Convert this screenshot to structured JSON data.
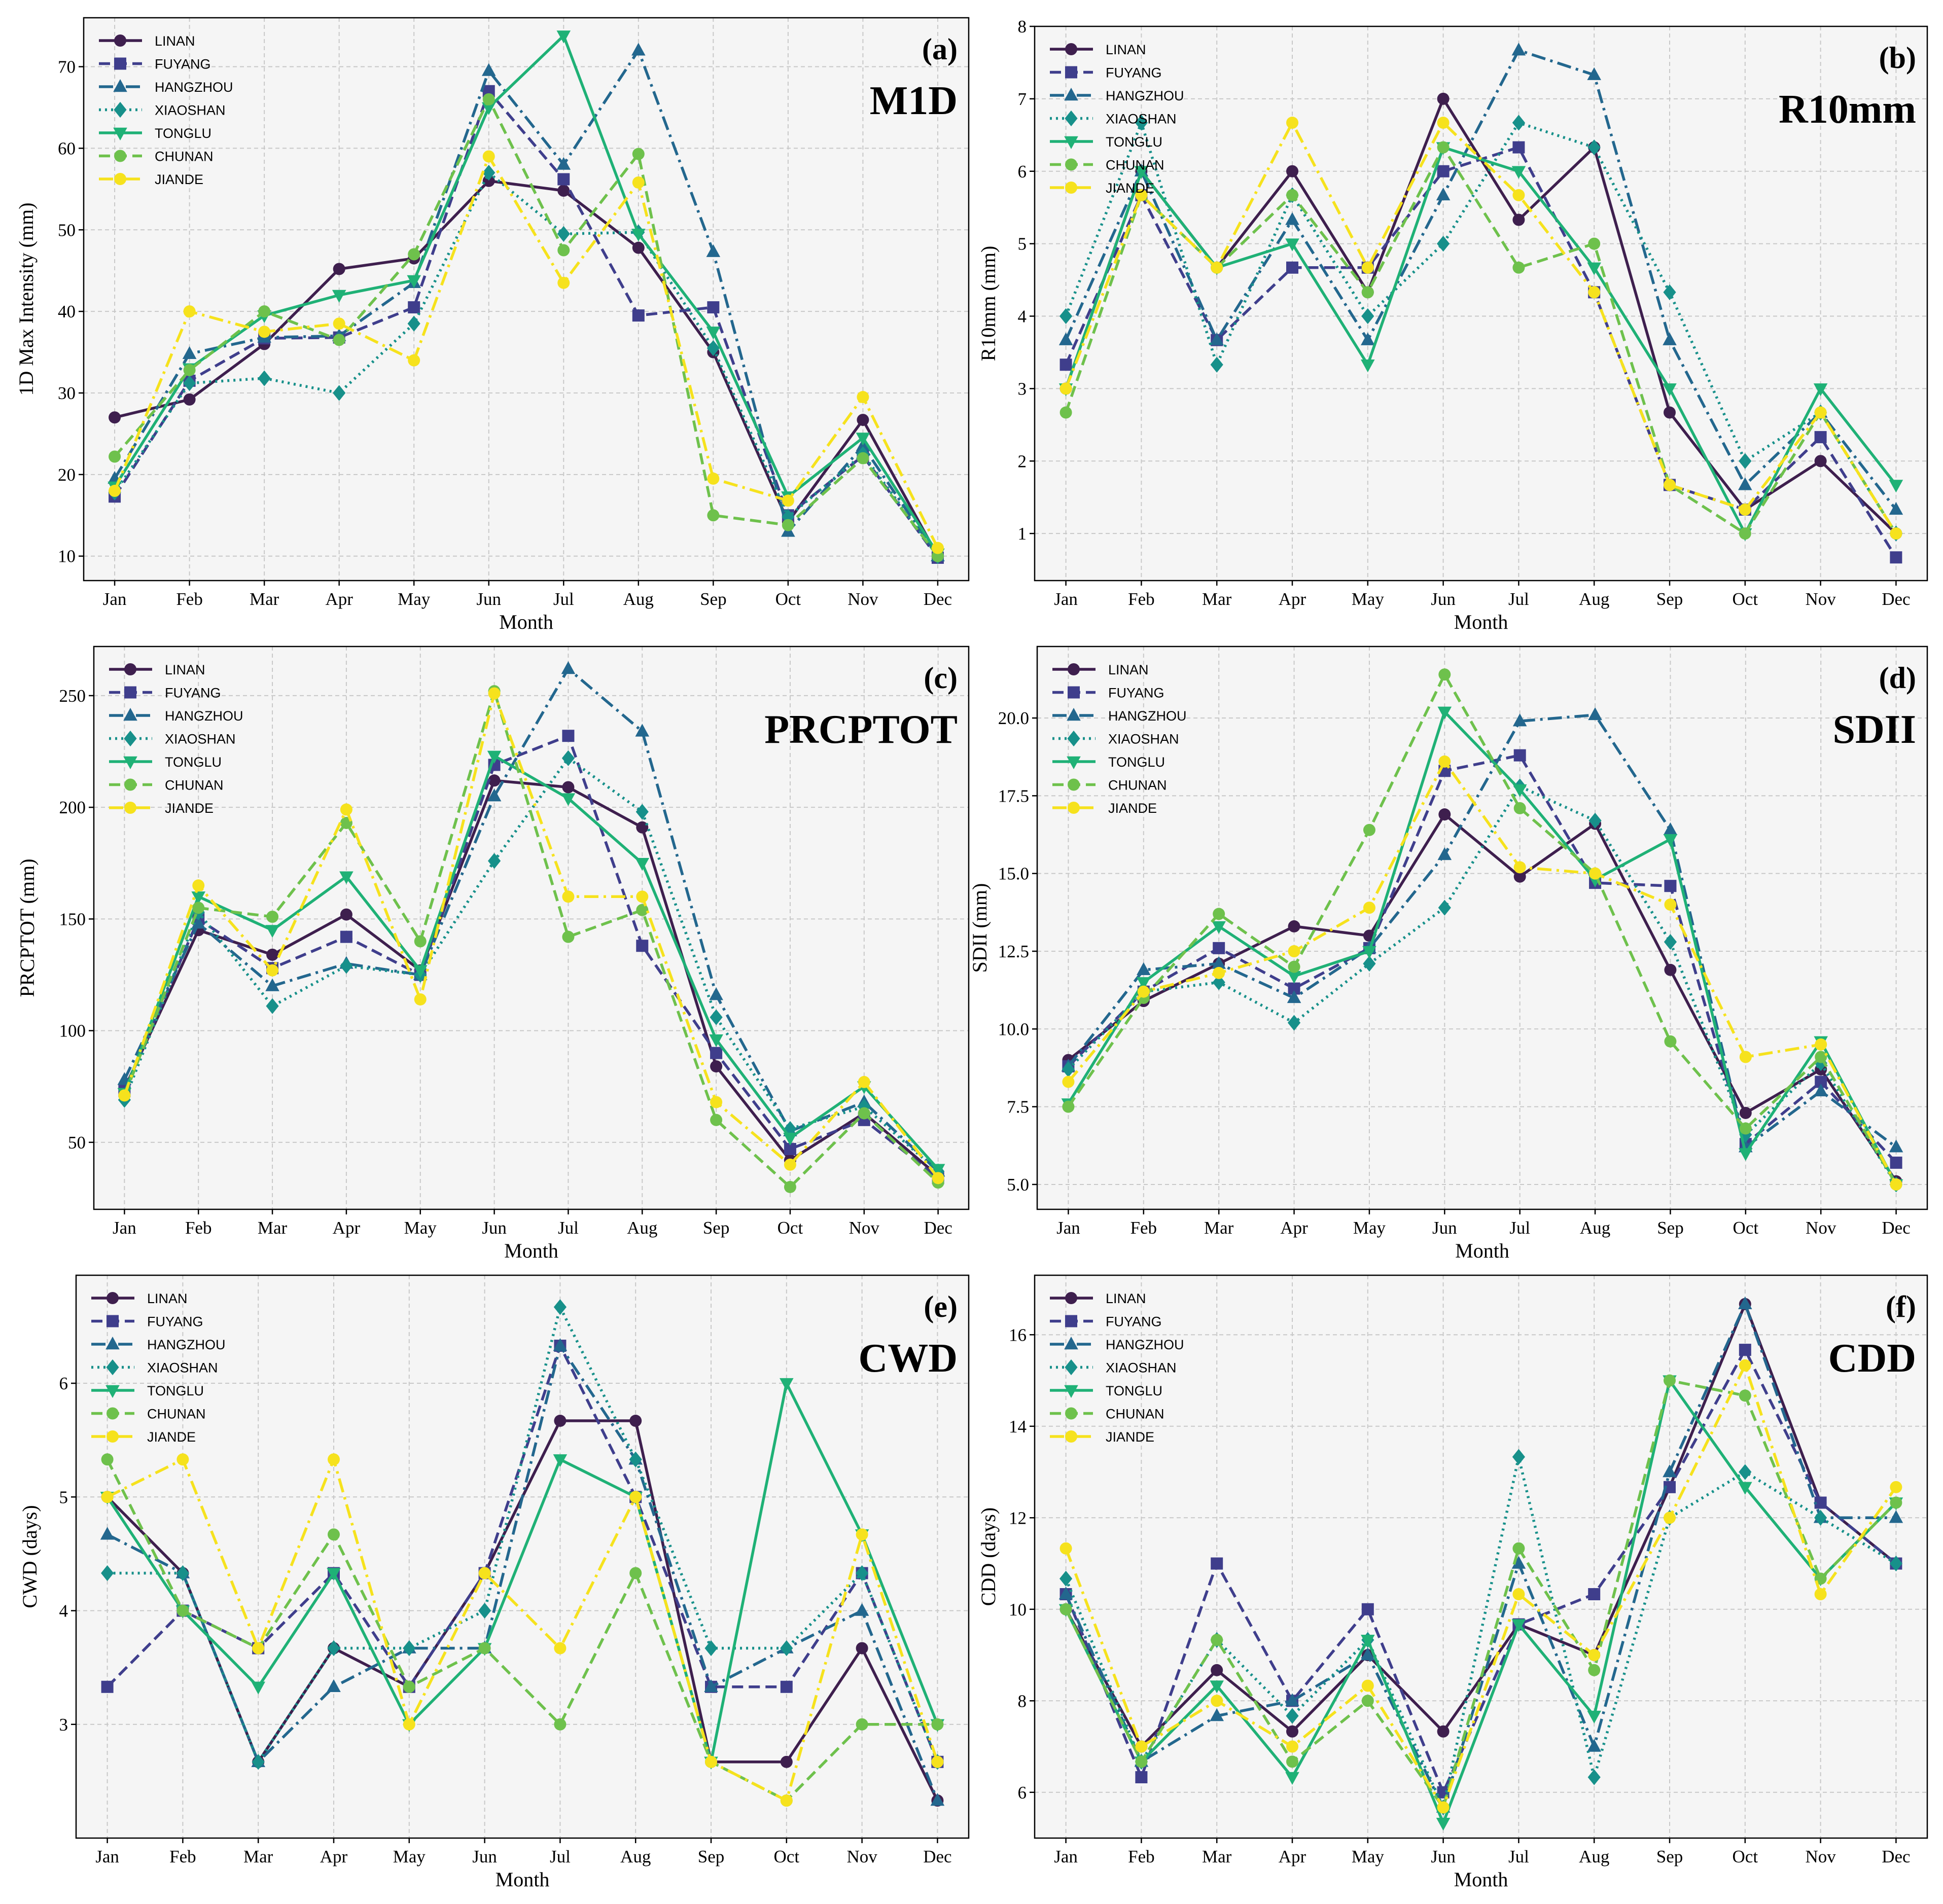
{
  "stations": [
    {
      "name": "LINAN",
      "color": "#3e1f4e",
      "dash": "",
      "marker": "circle"
    },
    {
      "name": "FUYANG",
      "color": "#3f3e8c",
      "dash": "22,11",
      "marker": "square"
    },
    {
      "name": "HANGZHOU",
      "color": "#23678e",
      "dash": "28,10,5,10",
      "marker": "triangle-up"
    },
    {
      "name": "XIAOSHAN",
      "color": "#17908a",
      "dash": "4,8",
      "marker": "diamond"
    },
    {
      "name": "TONGLU",
      "color": "#1fb176",
      "dash": "",
      "marker": "triangle-down"
    },
    {
      "name": "CHUNAN",
      "color": "#6ec14c",
      "dash": "22,11",
      "marker": "circle"
    },
    {
      "name": "JIANDE",
      "color": "#f6e21d",
      "dash": "28,10,5,10",
      "marker": "circle"
    }
  ],
  "chart_data": [
    {
      "id": "a",
      "type": "line",
      "letter": "(a)",
      "index_name": "M1D",
      "xlabel": "Month",
      "ylabel": "1D Max Intensity (mm)",
      "categories": [
        "Jan",
        "Feb",
        "Mar",
        "Apr",
        "May",
        "Jun",
        "Jul",
        "Aug",
        "Sep",
        "Oct",
        "Nov",
        "Dec"
      ],
      "ylim": [
        7,
        76
      ],
      "yticks": [
        10,
        20,
        30,
        40,
        50,
        60,
        70
      ],
      "ytick_labels": [
        "10",
        "20",
        "30",
        "40",
        "50",
        "60",
        "70"
      ],
      "series": [
        {
          "name": "LINAN",
          "values": [
            27,
            29.2,
            36,
            45.2,
            46.5,
            56,
            54.8,
            47.8,
            35,
            14.2,
            26.7,
            10
          ]
        },
        {
          "name": "FUYANG",
          "values": [
            17.3,
            31.5,
            36.7,
            36.8,
            40.5,
            67,
            56.2,
            39.5,
            40.5,
            15,
            22.3,
            9.8
          ]
        },
        {
          "name": "HANGZHOU",
          "values": [
            19.5,
            34.8,
            36.8,
            37,
            43.5,
            69.5,
            58,
            72,
            47.3,
            13,
            23.5,
            10
          ]
        },
        {
          "name": "XIAOSHAN",
          "values": [
            17.8,
            31.2,
            31.8,
            30,
            38.5,
            57,
            49.5,
            49.7,
            35.5,
            14.8,
            22.5,
            10
          ]
        },
        {
          "name": "TONGLU",
          "values": [
            18.5,
            33,
            39.5,
            42,
            43.8,
            65,
            73.8,
            49.5,
            37.5,
            17.3,
            24.5,
            10.3
          ]
        },
        {
          "name": "CHUNAN",
          "values": [
            22.2,
            32.8,
            40,
            36.5,
            47,
            66,
            47.5,
            59.3,
            15,
            13.8,
            22,
            10
          ]
        },
        {
          "name": "JIANDE",
          "values": [
            18,
            40,
            37.5,
            38.5,
            34,
            59,
            43.5,
            55.8,
            19.5,
            16.8,
            29.5,
            11
          ]
        }
      ]
    },
    {
      "id": "b",
      "type": "line",
      "letter": "(b)",
      "index_name": "R10mm",
      "xlabel": "Month",
      "ylabel": "R10mm (mm)",
      "categories": [
        "Jan",
        "Feb",
        "Mar",
        "Apr",
        "May",
        "Jun",
        "Jul",
        "Aug",
        "Sep",
        "Oct",
        "Nov",
        "Dec"
      ],
      "ylim": [
        0.35,
        8
      ],
      "yticks": [
        1,
        2,
        3,
        4,
        5,
        6,
        7,
        8
      ],
      "ytick_labels": [
        "1",
        "2",
        "3",
        "4",
        "5",
        "6",
        "7",
        "8"
      ],
      "series": [
        {
          "name": "LINAN",
          "values": [
            3,
            6,
            4.67,
            6,
            4.33,
            7,
            5.33,
            6.33,
            2.67,
            1.33,
            2,
            1
          ]
        },
        {
          "name": "FUYANG",
          "values": [
            3.33,
            5.67,
            3.67,
            4.67,
            4.67,
            6,
            6.33,
            4.33,
            1.67,
            1.33,
            2.33,
            0.67
          ]
        },
        {
          "name": "HANGZHOU",
          "values": [
            3.67,
            6,
            3.67,
            5.33,
            3.67,
            5.67,
            7.67,
            7.33,
            3.67,
            1.67,
            2.67,
            1.33
          ]
        },
        {
          "name": "XIAOSHAN",
          "values": [
            4,
            6.67,
            3.33,
            5.67,
            4,
            5,
            6.67,
            6.33,
            4.33,
            2,
            2.67,
            1
          ]
        },
        {
          "name": "TONGLU",
          "values": [
            3,
            6,
            4.67,
            5,
            3.33,
            6.33,
            6,
            4.67,
            3,
            1,
            3,
            1.67
          ]
        },
        {
          "name": "CHUNAN",
          "values": [
            2.67,
            5.67,
            4.67,
            5.67,
            4.33,
            6.33,
            4.67,
            5,
            1.67,
            1,
            2.67,
            1
          ]
        },
        {
          "name": "JIANDE",
          "values": [
            3,
            5.67,
            4.67,
            6.67,
            4.67,
            6.67,
            5.67,
            4.33,
            1.67,
            1.33,
            2.67,
            1
          ]
        }
      ]
    },
    {
      "id": "c",
      "type": "line",
      "letter": "(c)",
      "index_name": "PRCPTOT",
      "xlabel": "Month",
      "ylabel": "PRCPTOT (mm)",
      "categories": [
        "Jan",
        "Feb",
        "Mar",
        "Apr",
        "May",
        "Jun",
        "Jul",
        "Aug",
        "Sep",
        "Oct",
        "Nov",
        "Dec"
      ],
      "ylim": [
        20,
        272
      ],
      "yticks": [
        50,
        100,
        150,
        200,
        250
      ],
      "ytick_labels": [
        "50",
        "100",
        "150",
        "200",
        "250"
      ],
      "series": [
        {
          "name": "LINAN",
          "values": [
            74,
            145,
            134,
            152,
            127,
            212,
            209,
            191,
            84,
            42,
            63,
            35
          ]
        },
        {
          "name": "FUYANG",
          "values": [
            73,
            150,
            128,
            142,
            125,
            219,
            232,
            138,
            90,
            47,
            60,
            34
          ]
        },
        {
          "name": "HANGZHOU",
          "values": [
            78,
            148,
            120,
            130,
            125,
            205,
            262,
            234,
            116,
            55,
            68,
            37
          ]
        },
        {
          "name": "XIAOSHAN",
          "values": [
            69,
            153,
            111,
            129,
            125,
            176,
            222,
            198,
            106,
            56,
            66,
            37
          ]
        },
        {
          "name": "TONGLU",
          "values": [
            72,
            160,
            145,
            169,
            127,
            223,
            204,
            175,
            96,
            52,
            75,
            38
          ]
        },
        {
          "name": "CHUNAN",
          "values": [
            71,
            155,
            151,
            193,
            140,
            252,
            142,
            154,
            60,
            30,
            63,
            32
          ]
        },
        {
          "name": "JIANDE",
          "values": [
            71,
            165,
            127,
            199,
            114,
            251,
            160,
            160,
            68,
            40,
            77,
            34
          ]
        }
      ]
    },
    {
      "id": "d",
      "type": "line",
      "letter": "(d)",
      "index_name": "SDII",
      "xlabel": "Month",
      "ylabel": "SDII (mm)",
      "categories": [
        "Jan",
        "Feb",
        "Mar",
        "Apr",
        "May",
        "Jun",
        "Jul",
        "Aug",
        "Sep",
        "Oct",
        "Nov",
        "Dec"
      ],
      "ylim": [
        4.2,
        22.3
      ],
      "yticks": [
        5,
        7.5,
        10,
        12.5,
        15,
        17.5,
        20
      ],
      "ytick_labels": [
        "5.0",
        "7.5",
        "10.0",
        "12.5",
        "15.0",
        "17.5",
        "20.0"
      ],
      "series": [
        {
          "name": "LINAN",
          "values": [
            9,
            10.9,
            12.1,
            13.3,
            13,
            16.9,
            14.9,
            16.6,
            11.9,
            7.3,
            8.7,
            5.1
          ]
        },
        {
          "name": "FUYANG",
          "values": [
            8.8,
            11.2,
            12.6,
            11.3,
            12.6,
            18.3,
            18.8,
            14.7,
            14.6,
            6.3,
            8.3,
            5.7
          ]
        },
        {
          "name": "HANGZHOU",
          "values": [
            8.8,
            11.9,
            12.1,
            11,
            12.6,
            15.6,
            19.9,
            20.1,
            16.4,
            6.2,
            8,
            6.2
          ]
        },
        {
          "name": "XIAOSHAN",
          "values": [
            8.7,
            11.2,
            11.5,
            10.2,
            12.1,
            13.9,
            17.8,
            16.7,
            12.8,
            6.6,
            8.9,
            5
          ]
        },
        {
          "name": "TONGLU",
          "values": [
            7.6,
            11.5,
            13.3,
            11.7,
            12.5,
            20.2,
            17.7,
            14.8,
            16.1,
            6,
            9.6,
            5
          ]
        },
        {
          "name": "CHUNAN",
          "values": [
            7.5,
            11,
            13.7,
            12,
            16.4,
            21.4,
            17.1,
            15,
            9.6,
            6.8,
            9.1,
            5
          ]
        },
        {
          "name": "JIANDE",
          "values": [
            8.3,
            11.2,
            11.8,
            12.5,
            13.9,
            18.6,
            15.2,
            15,
            14,
            9.1,
            9.5,
            5
          ]
        }
      ]
    },
    {
      "id": "e",
      "type": "line",
      "letter": "(e)",
      "index_name": "CWD",
      "xlabel": "Month",
      "ylabel": "CWD (days)",
      "categories": [
        "Jan",
        "Feb",
        "Mar",
        "Apr",
        "May",
        "Jun",
        "Jul",
        "Aug",
        "Sep",
        "Oct",
        "Nov",
        "Dec"
      ],
      "ylim": [
        2.0,
        6.95
      ],
      "yticks": [
        3,
        4,
        5,
        6
      ],
      "ytick_labels": [
        "3",
        "4",
        "5",
        "6"
      ],
      "series": [
        {
          "name": "LINAN",
          "values": [
            5,
            4.33,
            2.67,
            3.67,
            3.33,
            4.33,
            5.67,
            5.67,
            2.67,
            2.67,
            3.67,
            2.33
          ]
        },
        {
          "name": "FUYANG",
          "values": [
            3.33,
            4,
            3.67,
            4.33,
            3.33,
            4.33,
            6.33,
            5,
            3.33,
            3.33,
            4.33,
            2.67
          ]
        },
        {
          "name": "HANGZHOU",
          "values": [
            4.67,
            4.33,
            2.67,
            3.33,
            3.67,
            3.67,
            6.33,
            5.33,
            3.33,
            3.67,
            4,
            2.33
          ]
        },
        {
          "name": "XIAOSHAN",
          "values": [
            4.33,
            4.33,
            2.67,
            3.67,
            3.67,
            4,
            6.67,
            5.33,
            3.67,
            3.67,
            4.33,
            2.67
          ]
        },
        {
          "name": "TONGLU",
          "values": [
            5,
            4,
            3.33,
            4.33,
            3,
            3.67,
            5.33,
            5,
            2.67,
            6,
            4.67,
            3
          ]
        },
        {
          "name": "CHUNAN",
          "values": [
            5.33,
            4,
            3.67,
            4.67,
            3.33,
            3.67,
            3,
            4.33,
            2.67,
            2.33,
            3,
            3
          ]
        },
        {
          "name": "JIANDE",
          "values": [
            5,
            5.33,
            3.67,
            5.33,
            3,
            4.33,
            3.67,
            5,
            2.67,
            2.33,
            4.67,
            2.67
          ]
        }
      ]
    },
    {
      "id": "f",
      "type": "line",
      "letter": "(f)",
      "index_name": "CDD",
      "xlabel": "Month",
      "ylabel": "CDD (days)",
      "categories": [
        "Jan",
        "Feb",
        "Mar",
        "Apr",
        "May",
        "Jun",
        "Jul",
        "Aug",
        "Sep",
        "Oct",
        "Nov",
        "Dec"
      ],
      "ylim": [
        5.0,
        17.3
      ],
      "yticks": [
        6,
        8,
        10,
        12,
        14,
        16
      ],
      "ytick_labels": [
        "6",
        "8",
        "10",
        "12",
        "14",
        "16"
      ],
      "series": [
        {
          "name": "LINAN",
          "values": [
            10,
            7,
            8.67,
            7.33,
            9,
            7.33,
            9.67,
            9,
            12.67,
            16.67,
            12.33,
            11
          ]
        },
        {
          "name": "FUYANG",
          "values": [
            10.33,
            6.33,
            11,
            8,
            10,
            6,
            9.67,
            10.33,
            12.67,
            15.67,
            12.33,
            11
          ]
        },
        {
          "name": "HANGZHOU",
          "values": [
            10.33,
            6.67,
            7.67,
            8,
            9,
            5.67,
            11,
            7,
            13,
            16.67,
            12,
            12
          ]
        },
        {
          "name": "XIAOSHAN",
          "values": [
            10.67,
            6.67,
            9.33,
            7.67,
            9.33,
            5.67,
            13.33,
            6.33,
            12,
            13,
            12,
            11
          ]
        },
        {
          "name": "TONGLU",
          "values": [
            10,
            6.67,
            8.33,
            6.33,
            9.33,
            5.33,
            9.67,
            7.67,
            15,
            12.67,
            10.67,
            12.33
          ]
        },
        {
          "name": "CHUNAN",
          "values": [
            10,
            6.67,
            9.33,
            6.67,
            8,
            5.67,
            11.33,
            8.67,
            15,
            14.67,
            10.67,
            12.33
          ]
        },
        {
          "name": "JIANDE",
          "values": [
            11.33,
            7,
            8,
            7,
            8.33,
            5.67,
            10.33,
            9,
            12,
            15.33,
            10.33,
            12.67
          ]
        }
      ]
    }
  ]
}
